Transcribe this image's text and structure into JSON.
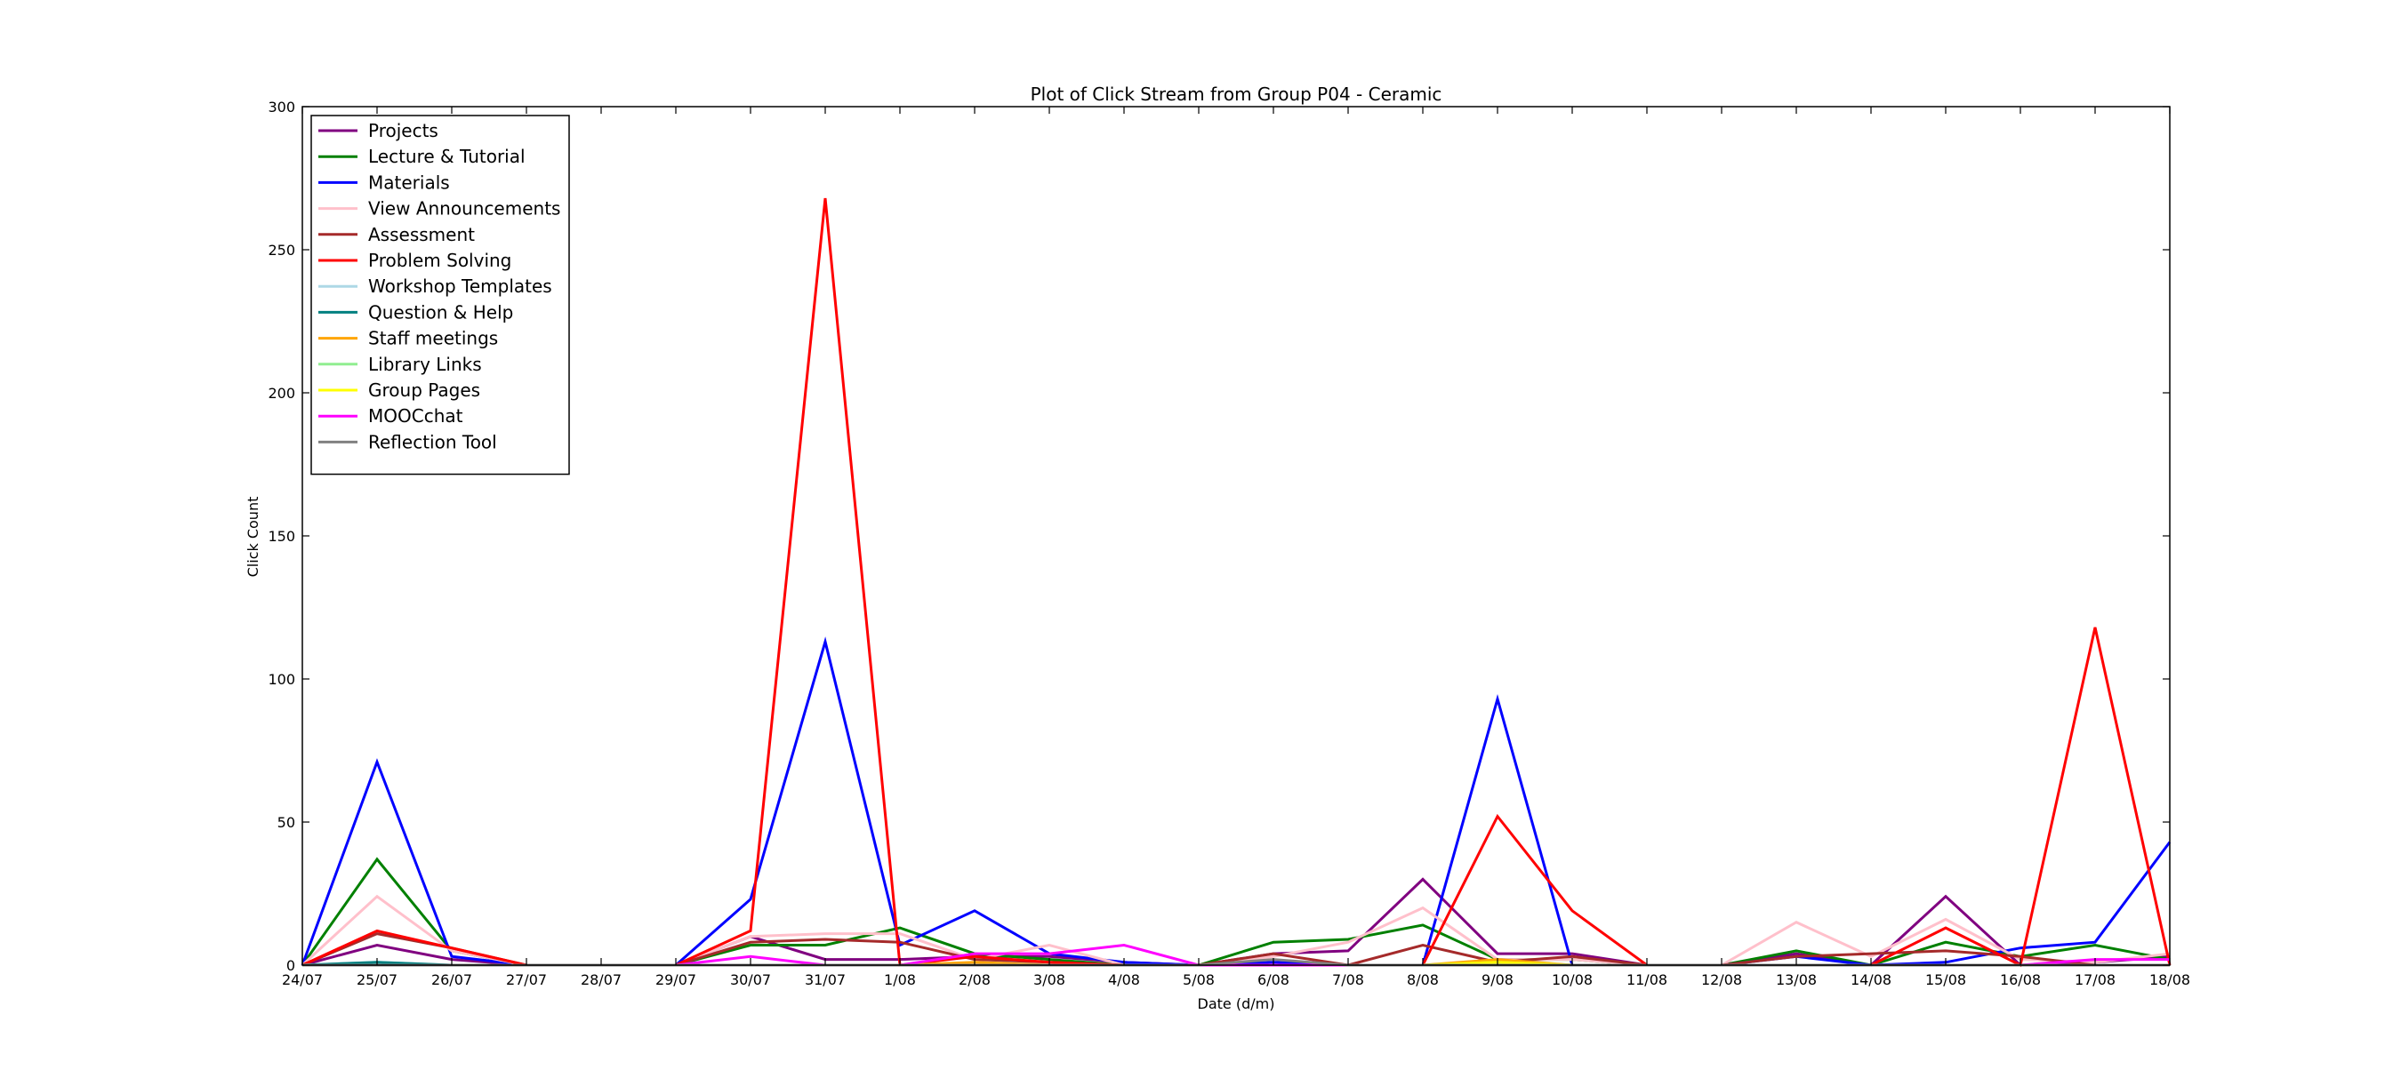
{
  "chart_data": {
    "type": "line",
    "title": "Plot of Click Stream from Group P04 - Ceramic",
    "xlabel": "Date (d/m)",
    "ylabel": "Click Count",
    "ylim": [
      0,
      300
    ],
    "yticks": [
      0,
      50,
      100,
      150,
      200,
      250,
      300
    ],
    "grid": false,
    "legend_position": "top-left",
    "categories": [
      "24/07",
      "25/07",
      "26/07",
      "27/07",
      "28/07",
      "29/07",
      "30/07",
      "31/07",
      "1/08",
      "2/08",
      "3/08",
      "4/08",
      "5/08",
      "6/08",
      "7/08",
      "8/08",
      "9/08",
      "10/08",
      "11/08",
      "12/08",
      "13/08",
      "14/08",
      "15/08",
      "16/08",
      "17/08",
      "18/08"
    ],
    "series": [
      {
        "name": "Projects",
        "color": "#800080",
        "values": [
          0,
          7,
          2,
          0,
          0,
          0,
          10,
          2,
          2,
          3,
          3,
          1,
          0,
          4,
          5,
          30,
          4,
          4,
          0,
          0,
          4,
          0,
          24,
          0,
          1,
          3
        ]
      },
      {
        "name": "Lecture & Tutorial",
        "color": "#008000",
        "values": [
          0,
          37,
          5,
          0,
          0,
          0,
          7,
          7,
          13,
          4,
          2,
          0,
          0,
          8,
          9,
          14,
          2,
          2,
          0,
          0,
          5,
          0,
          8,
          3,
          7,
          2
        ]
      },
      {
        "name": "Materials",
        "color": "#0000ff",
        "values": [
          0,
          71,
          3,
          0,
          0,
          0,
          23,
          113,
          7,
          19,
          4,
          1,
          0,
          1,
          0,
          0,
          93,
          0,
          0,
          0,
          3,
          0,
          1,
          6,
          8,
          43
        ]
      },
      {
        "name": "View Announcements",
        "color": "#ffc0cb",
        "values": [
          0,
          24,
          5,
          0,
          0,
          0,
          10,
          11,
          11,
          2,
          7,
          0,
          0,
          3,
          8,
          20,
          2,
          2,
          0,
          0,
          15,
          3,
          16,
          2,
          1,
          4
        ]
      },
      {
        "name": "Assessment",
        "color": "#a52a2a",
        "values": [
          0,
          11,
          6,
          0,
          0,
          0,
          8,
          9,
          8,
          2,
          1,
          0,
          0,
          4,
          0,
          7,
          1,
          3,
          0,
          0,
          3,
          4,
          5,
          3,
          0,
          0
        ]
      },
      {
        "name": "Problem Solving",
        "color": "#ff0000",
        "values": [
          0,
          12,
          6,
          0,
          0,
          0,
          12,
          268,
          0,
          3,
          1,
          0,
          0,
          0,
          0,
          0,
          52,
          19,
          0,
          0,
          0,
          0,
          13,
          0,
          118,
          0
        ]
      },
      {
        "name": "Workshop Templates",
        "color": "#add8e6",
        "values": [
          0,
          1,
          0,
          0,
          0,
          0,
          0,
          0,
          0,
          0,
          0,
          0,
          0,
          0,
          0,
          0,
          0,
          0,
          0,
          0,
          0,
          0,
          0,
          0,
          0,
          0
        ]
      },
      {
        "name": "Question & Help",
        "color": "#008080",
        "values": [
          0,
          1,
          0,
          0,
          0,
          0,
          0,
          0,
          0,
          0,
          0,
          0,
          0,
          0,
          0,
          0,
          0,
          0,
          0,
          0,
          0,
          0,
          0,
          0,
          0,
          0
        ]
      },
      {
        "name": "Staff meetings",
        "color": "#ffa500",
        "values": [
          0,
          0,
          0,
          0,
          0,
          0,
          0,
          0,
          0,
          1,
          0,
          0,
          0,
          0,
          0,
          0,
          2,
          0,
          0,
          0,
          0,
          0,
          0,
          0,
          0,
          0
        ]
      },
      {
        "name": "Library Links",
        "color": "#90ee90",
        "values": [
          0,
          0,
          0,
          0,
          0,
          0,
          0,
          0,
          0,
          0,
          0,
          0,
          0,
          0,
          0,
          0,
          1,
          0,
          0,
          0,
          0,
          0,
          0,
          0,
          0,
          0
        ]
      },
      {
        "name": "Group Pages",
        "color": "#ffff00",
        "values": [
          0,
          0,
          0,
          0,
          0,
          0,
          0,
          0,
          0,
          0,
          0,
          0,
          0,
          0,
          0,
          0,
          1,
          0,
          0,
          0,
          0,
          0,
          0,
          0,
          0,
          0
        ]
      },
      {
        "name": "MOOCchat",
        "color": "#ff00ff",
        "values": [
          0,
          0,
          0,
          0,
          0,
          0,
          3,
          0,
          0,
          4,
          4,
          7,
          0,
          0,
          0,
          0,
          0,
          0,
          0,
          0,
          0,
          0,
          0,
          0,
          2,
          2
        ]
      },
      {
        "name": "Reflection Tool",
        "color": "#808080",
        "values": [
          0,
          0,
          0,
          0,
          0,
          0,
          0,
          0,
          0,
          0,
          0,
          0,
          0,
          2,
          0,
          0,
          0,
          0,
          0,
          0,
          0,
          0,
          0,
          0,
          0,
          0
        ]
      }
    ]
  }
}
